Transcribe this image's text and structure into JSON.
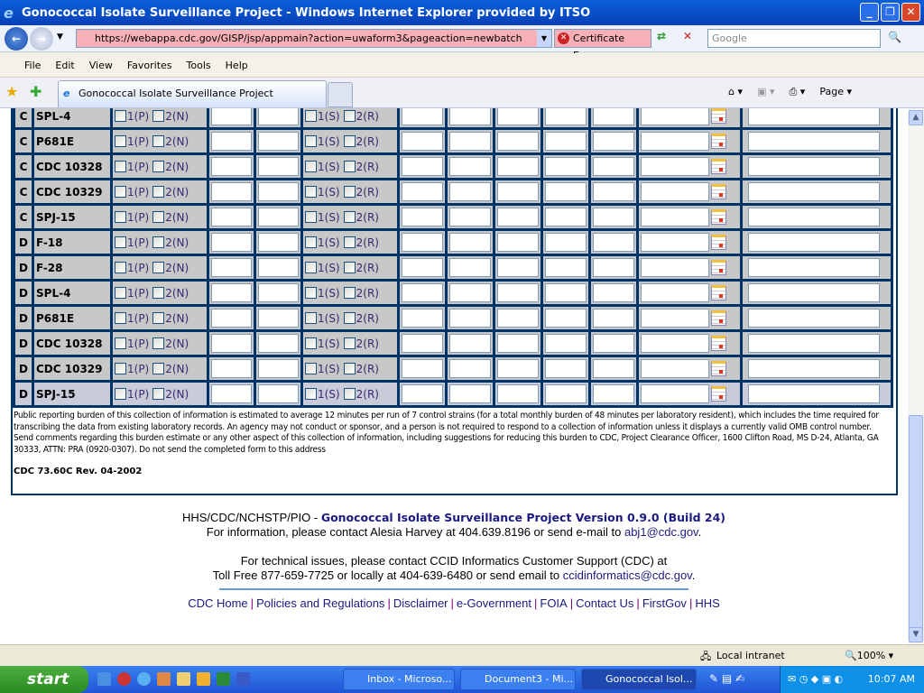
{
  "window": {
    "title": "Gonococcal Isolate Surveillance Project - Windows Internet Explorer provided by ITSO"
  },
  "address_bar": {
    "url": "https://webappa.cdc.gov/GISP/jsp/appmain?action=uwaform3&pageaction=newbatch",
    "cert_error": "Certificate Error",
    "search_placeholder": "Google"
  },
  "menu": [
    "File",
    "Edit",
    "View",
    "Favorites",
    "Tools",
    "Help"
  ],
  "tab": {
    "title": "Gonococcal Isolate Surveillance Project"
  },
  "toolbar": {
    "page_label": "Page"
  },
  "form": {
    "check1_labels": [
      "1(P)",
      "2(N)"
    ],
    "check2_labels": [
      "1(S)",
      "2(R)"
    ],
    "rows": [
      {
        "group": "C",
        "strain": "SPL-4"
      },
      {
        "group": "C",
        "strain": "P681E"
      },
      {
        "group": "C",
        "strain": "CDC 10328"
      },
      {
        "group": "C",
        "strain": "CDC 10329"
      },
      {
        "group": "C",
        "strain": "SPJ-15"
      },
      {
        "group": "D",
        "strain": "F-18"
      },
      {
        "group": "D",
        "strain": "F-28"
      },
      {
        "group": "D",
        "strain": "SPL-4"
      },
      {
        "group": "D",
        "strain": "P681E"
      },
      {
        "group": "D",
        "strain": "CDC 10328"
      },
      {
        "group": "D",
        "strain": "CDC 10329"
      },
      {
        "group": "D",
        "strain": "SPJ-15"
      }
    ],
    "notice": "Public reporting burden of this collection of information is estimated to average 12 minutes per run of 7 control strains (for a total monthly burden of 48 minutes per laboratory resident), which includes the time required for transcribing the data from existing laboratory records. An agency may not conduct or sponsor, and a person is not required to respond to a collection of information unless it displays a currently valid OMB control number. Send comments regarding this burden estimate or any other aspect of this collection of information, including suggestions for reducing this burden to CDC, Project Clearance Officer, 1600 Clifton Road, MS D-24, Atlanta, GA 30333, ATTN: PRA (0920-0307). Do not send the completed form to this address",
    "form_id": "CDC 73.60C Rev. 04-2002"
  },
  "footer": {
    "org": "HHS/CDC/NCHSTP/PIO - ",
    "brand": "Gonococcal Isolate Surveillance Project Version 0.9.0 (Build 24)",
    "info_prefix": "For information, please contact Alesia Harvey at 404.639.8196 or send e-mail to ",
    "info_email": "abj1@cdc.gov",
    "tech_line1": "For technical issues, please contact CCID Informatics Customer Support (CDC) at",
    "tech_prefix": "Toll Free 877-659-7725 or locally at 404-639-6480 or send email to ",
    "tech_email": "ccidinformatics@cdc.gov",
    "links": [
      "CDC Home",
      "Policies and Regulations",
      "Disclaimer",
      "e-Government",
      "FOIA",
      "Contact Us",
      "FirstGov",
      "HHS"
    ]
  },
  "status_bar": {
    "zone": "Local intranet",
    "zoom": "100%"
  },
  "taskbar": {
    "start": "start",
    "tasks": [
      "Inbox - Microso...",
      "Document3 - Mi...",
      "Gonococcal Isol..."
    ],
    "clock": "10:07 AM"
  }
}
